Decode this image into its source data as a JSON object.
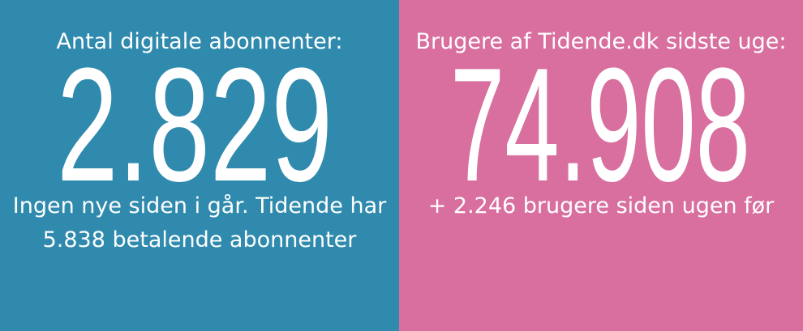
{
  "panels": [
    {
      "label": "Antal digitale abonnenter:",
      "value": "2.829",
      "note_lines": [
        "Ingen nye siden i går. Tidende har",
        "5.838 betalende abonnenter"
      ]
    },
    {
      "label": "Brugere af Tidende.dk sidste uge:",
      "value": "74.908",
      "note_lines": [
        "+ 2.246 brugere siden ugen før"
      ]
    }
  ]
}
